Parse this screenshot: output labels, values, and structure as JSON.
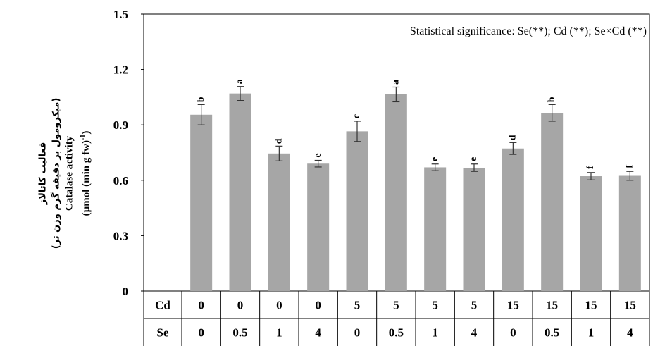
{
  "chart_data": {
    "type": "bar",
    "ylabel_lines": [
      "فعالیت کاتالاز",
      "(میکرومول بر دقیقه گرم وزن تر)",
      "Catalase activity",
      "(µmol (min g fw)",
      "-1",
      ")"
    ],
    "annotation": "Statistical significance: Se(**); Cd (**); Se×Cd (**)",
    "ylim": [
      0,
      1.5
    ],
    "yticks": [
      "0",
      "0.3",
      "0.6",
      "0.9",
      "1.2",
      "1.5"
    ],
    "ytick_values": [
      0,
      0.3,
      0.6,
      0.9,
      1.2,
      1.5
    ],
    "row_labels": [
      "Cd",
      "Se"
    ],
    "cd": [
      "0",
      "0",
      "0",
      "0",
      "5",
      "5",
      "5",
      "5",
      "15",
      "15",
      "15",
      "15"
    ],
    "se": [
      "0",
      "0.5",
      "1",
      "4",
      "0",
      "0.5",
      "1",
      "4",
      "0",
      "0.5",
      "1",
      "4"
    ],
    "values": [
      0.955,
      1.07,
      0.745,
      0.69,
      0.865,
      1.065,
      0.67,
      0.668,
      0.772,
      0.965,
      0.622,
      0.624
    ],
    "errors": [
      0.055,
      0.038,
      0.04,
      0.018,
      0.055,
      0.04,
      0.018,
      0.02,
      0.032,
      0.045,
      0.02,
      0.024
    ],
    "letters": [
      "b",
      "a",
      "d",
      "e",
      "c",
      "a",
      "e",
      "e",
      "d",
      "b",
      "f",
      "f"
    ],
    "grid": false,
    "bar_color": "#a6a6a6"
  }
}
